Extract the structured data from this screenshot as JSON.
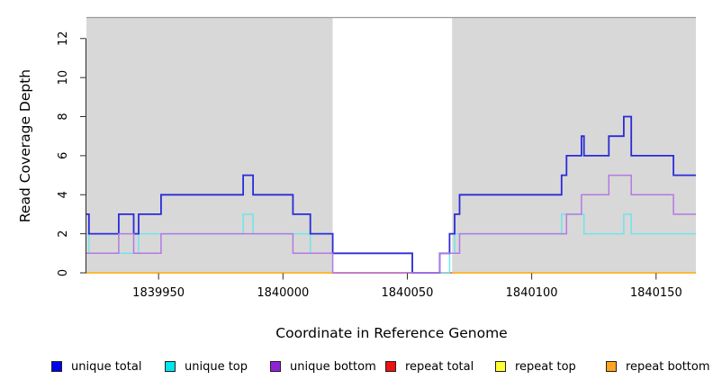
{
  "chart_data": {
    "type": "line",
    "step": true,
    "title": "",
    "xlabel": "Coordinate in Reference Genome",
    "ylabel": "Read Coverage Depth",
    "xlim": [
      1839921,
      1840166
    ],
    "ylim": [
      0,
      13.05
    ],
    "x_ticks": [
      1839950,
      1840000,
      1840050,
      1840100,
      1840150
    ],
    "y_ticks": [
      0,
      2,
      4,
      6,
      8,
      10,
      12
    ],
    "grid": false,
    "legend_position": "bottom",
    "panel_background": "#d8d8d8",
    "highlight_region": {
      "x_start": 1840020,
      "x_end": 1840068,
      "fill": "#ffffff"
    },
    "series": [
      {
        "name": "unique total",
        "color": "#2b2bd9",
        "legend_color": "#0000ee",
        "x_end": 1840166,
        "steps": [
          [
            1839921,
            3
          ],
          [
            1839922,
            2
          ],
          [
            1839934,
            3
          ],
          [
            1839940,
            2
          ],
          [
            1839942,
            3
          ],
          [
            1839951,
            4
          ],
          [
            1839984,
            5
          ],
          [
            1839988,
            4
          ],
          [
            1840004,
            3
          ],
          [
            1840011,
            2
          ],
          [
            1840020,
            1
          ],
          [
            1840052,
            0
          ],
          [
            1840063,
            1
          ],
          [
            1840067,
            2
          ],
          [
            1840069,
            3
          ],
          [
            1840071,
            4
          ],
          [
            1840112,
            5
          ],
          [
            1840114,
            6
          ],
          [
            1840120,
            7
          ],
          [
            1840121,
            6
          ],
          [
            1840131,
            7
          ],
          [
            1840137,
            8
          ],
          [
            1840140,
            6
          ],
          [
            1840157,
            5
          ]
        ]
      },
      {
        "name": "unique top",
        "color": "#70e4ea",
        "legend_color": "#00e5ee",
        "x_end": 1840166,
        "steps": [
          [
            1839921,
            2
          ],
          [
            1839922,
            1
          ],
          [
            1839942,
            2
          ],
          [
            1839984,
            3
          ],
          [
            1839988,
            2
          ],
          [
            1840011,
            1
          ],
          [
            1840052,
            0
          ],
          [
            1840067,
            1
          ],
          [
            1840069,
            2
          ],
          [
            1840112,
            3
          ],
          [
            1840121,
            2
          ],
          [
            1840137,
            3
          ],
          [
            1840140,
            2
          ]
        ]
      },
      {
        "name": "unique bottom",
        "color": "#b379e3",
        "legend_color": "#9023d8",
        "x_end": 1840166,
        "steps": [
          [
            1839921,
            1
          ],
          [
            1839934,
            2
          ],
          [
            1839940,
            1
          ],
          [
            1839951,
            2
          ],
          [
            1840004,
            1
          ],
          [
            1840020,
            0
          ],
          [
            1840063,
            1
          ],
          [
            1840071,
            2
          ],
          [
            1840114,
            3
          ],
          [
            1840120,
            4
          ],
          [
            1840131,
            5
          ],
          [
            1840140,
            4
          ],
          [
            1840157,
            3
          ]
        ]
      },
      {
        "name": "repeat total",
        "color": "#e2607a",
        "legend_color": "#ee1111",
        "x_end": 1840068,
        "steps": [
          [
            1840020,
            0
          ]
        ]
      },
      {
        "name": "repeat top",
        "color": "#ffff33",
        "legend_color": "#ffff33",
        "x_end": 1840166,
        "steps": [
          [
            1839921,
            0
          ]
        ]
      },
      {
        "name": "repeat bottom",
        "color": "#ffa41c",
        "legend_color": "#ffa41c",
        "x_end": 1840166,
        "steps": [
          [
            1839921,
            0
          ]
        ]
      }
    ],
    "draw_order": [
      4,
      5,
      3,
      1,
      0,
      2
    ]
  }
}
